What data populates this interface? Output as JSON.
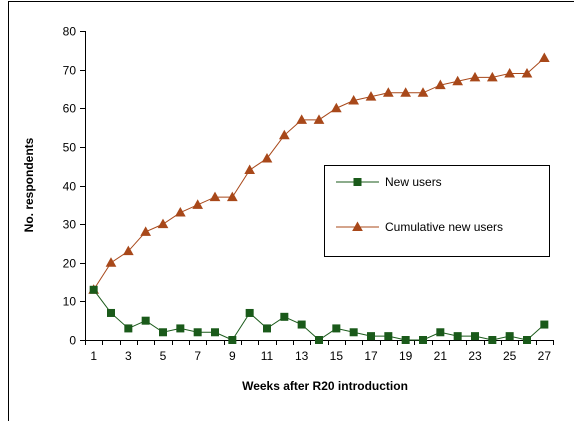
{
  "chart_data": {
    "type": "line",
    "title": "",
    "xlabel": "Weeks after R20 introduction",
    "ylabel": "No. respondents",
    "x": [
      1,
      2,
      3,
      4,
      5,
      6,
      7,
      8,
      9,
      10,
      11,
      12,
      13,
      14,
      15,
      16,
      17,
      18,
      19,
      20,
      21,
      22,
      23,
      24,
      25,
      26,
      27
    ],
    "x_tick_labels": [
      "1",
      "3",
      "5",
      "7",
      "9",
      "11",
      "13",
      "15",
      "17",
      "19",
      "21",
      "23",
      "25",
      "27"
    ],
    "ylim": [
      0,
      80
    ],
    "y_tick_labels": [
      "0",
      "10",
      "20",
      "30",
      "40",
      "50",
      "60",
      "70",
      "80"
    ],
    "grid": false,
    "legend_position": "right",
    "series": [
      {
        "name": "New users",
        "color": "#1a5a1a",
        "marker": "square",
        "values": [
          13,
          7,
          3,
          5,
          2,
          3,
          2,
          2,
          0,
          7,
          3,
          6,
          4,
          0,
          3,
          2,
          1,
          1,
          0,
          0,
          2,
          1,
          1,
          0,
          1,
          0,
          4
        ]
      },
      {
        "name": "Cumulative new users",
        "color": "#a8481a",
        "marker": "triangle",
        "values": [
          13,
          20,
          23,
          28,
          30,
          33,
          35,
          37,
          37,
          44,
          47,
          53,
          57,
          57,
          60,
          62,
          63,
          64,
          64,
          64,
          66,
          67,
          68,
          68,
          69,
          69,
          73
        ]
      }
    ]
  }
}
